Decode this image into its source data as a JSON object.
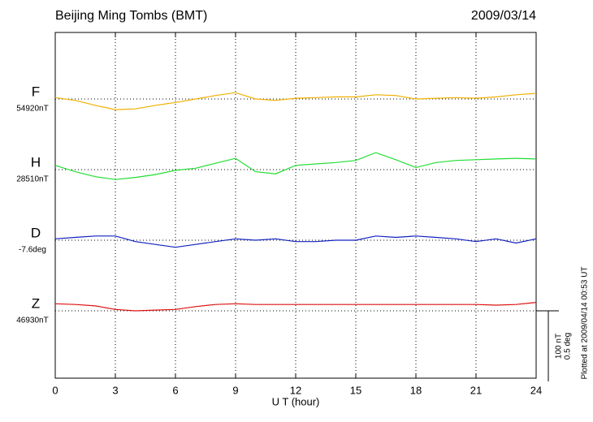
{
  "chart_data": {
    "type": "line",
    "title": "Beijing Ming Tombs (BMT)",
    "date": "2009/03/14",
    "xlabel": "U T (hour)",
    "footer": "Plotted at 2009/04/14 00:53 UT",
    "xlim": [
      0,
      24
    ],
    "xticks": [
      0,
      3,
      6,
      9,
      12,
      15,
      18,
      21,
      24
    ],
    "grid": true,
    "scale": [
      {
        "value": 100,
        "label": "100 nT"
      },
      {
        "value": 0.5,
        "label": "0.5 deg"
      }
    ],
    "x": [
      0,
      1,
      2,
      3,
      4,
      5,
      6,
      7,
      8,
      9,
      10,
      11,
      12,
      13,
      14,
      15,
      16,
      17,
      18,
      19,
      20,
      21,
      22,
      23,
      24
    ],
    "series": [
      {
        "name": "F",
        "baseline": "54920nT",
        "color": "#f0b000",
        "scale": 0,
        "values": [
          2,
          -2,
          -9,
          -15,
          -14,
          -9,
          -5,
          0,
          5,
          9,
          0,
          -2,
          1,
          2,
          3,
          3,
          6,
          5,
          0,
          1,
          2,
          1,
          3,
          6,
          8
        ]
      },
      {
        "name": "H",
        "baseline": "28510nT",
        "color": "#22dd33",
        "scale": 0,
        "values": [
          6,
          -3,
          -10,
          -14,
          -11,
          -7,
          -1,
          2,
          9,
          16,
          -3,
          -6,
          6,
          8,
          10,
          13,
          24,
          14,
          3,
          10,
          13,
          14,
          15,
          16,
          15
        ]
      },
      {
        "name": "D",
        "baseline": "-7.6deg",
        "color": "#1020c0",
        "scale": 1,
        "values": [
          0.01,
          0.02,
          0.03,
          0.03,
          -0.01,
          -0.03,
          -0.05,
          -0.03,
          -0.01,
          0.01,
          0,
          0.01,
          -0.01,
          -0.01,
          0,
          0,
          0.03,
          0.02,
          0.03,
          0.02,
          0.01,
          -0.01,
          0.01,
          -0.02,
          0.01
        ]
      },
      {
        "name": "Z",
        "baseline": "46930nT",
        "color": "#dd1111",
        "scale": 0,
        "values": [
          10,
          9,
          7,
          2,
          0,
          1,
          2,
          6,
          9,
          10,
          9,
          9,
          9,
          9,
          9,
          9,
          9,
          9,
          9,
          9,
          9,
          9,
          8,
          9,
          12
        ]
      }
    ]
  }
}
